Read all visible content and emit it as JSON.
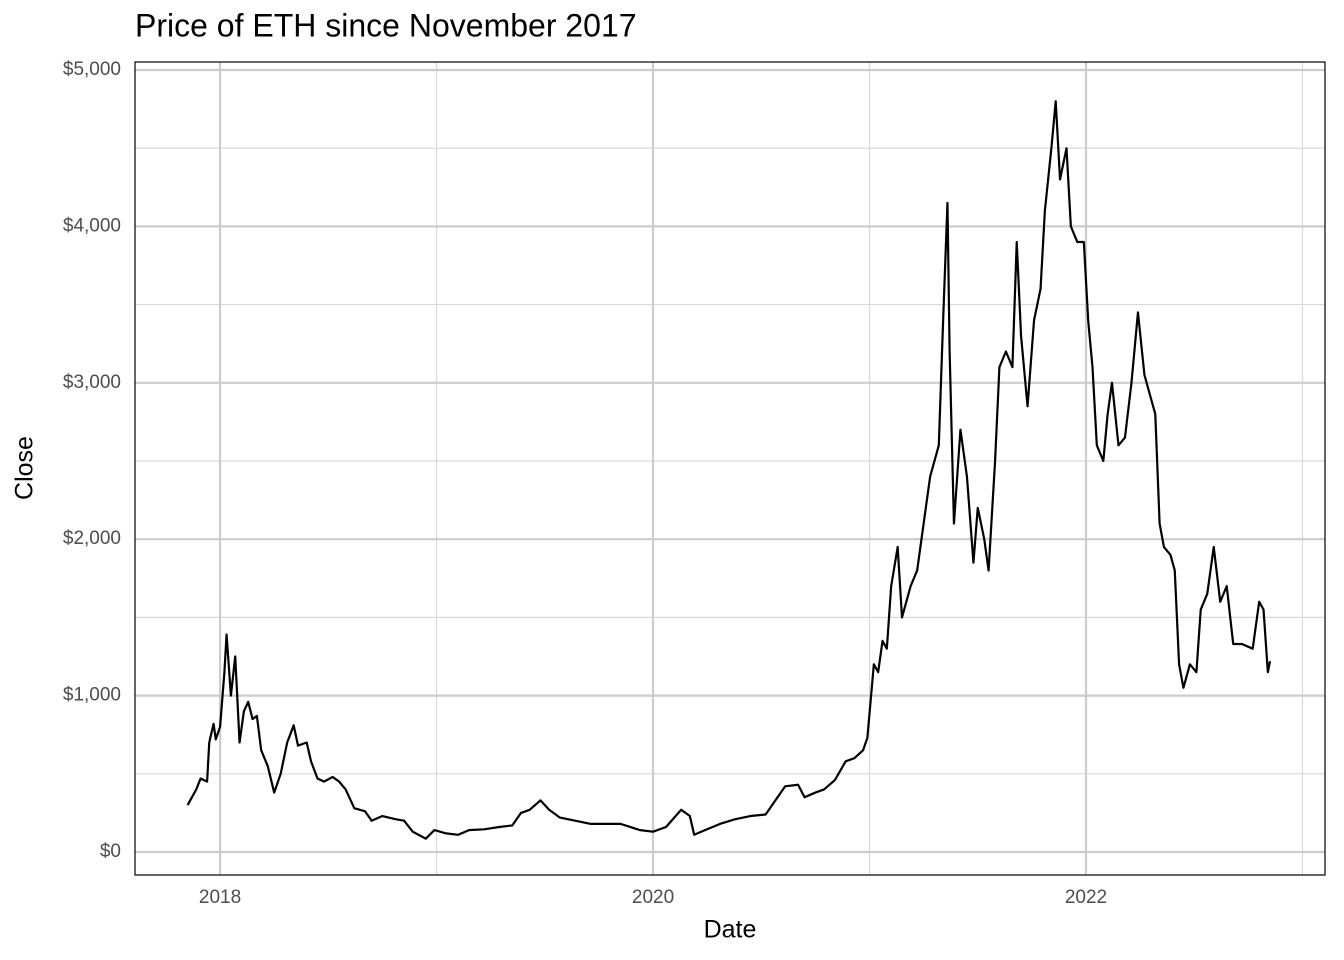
{
  "chart_data": {
    "type": "line",
    "title": "Price of ETH since November 2017",
    "x_label": "Date",
    "y_label": "Close",
    "x": [
      2017.85,
      2017.89,
      2017.91,
      2017.94,
      2017.95,
      2017.97,
      2017.98,
      2018.0,
      2018.02,
      2018.03,
      2018.05,
      2018.07,
      2018.09,
      2018.11,
      2018.13,
      2018.15,
      2018.17,
      2018.19,
      2018.22,
      2018.25,
      2018.28,
      2018.31,
      2018.34,
      2018.36,
      2018.4,
      2018.42,
      2018.45,
      2018.48,
      2018.52,
      2018.55,
      2018.58,
      2018.62,
      2018.67,
      2018.7,
      2018.75,
      2018.81,
      2018.85,
      2018.89,
      2018.95,
      2018.99,
      2019.04,
      2019.1,
      2019.15,
      2019.22,
      2019.29,
      2019.35,
      2019.39,
      2019.43,
      2019.48,
      2019.52,
      2019.57,
      2019.64,
      2019.71,
      2019.78,
      2019.85,
      2019.94,
      2020.0,
      2020.06,
      2020.13,
      2020.17,
      2020.19,
      2020.24,
      2020.31,
      2020.38,
      2020.45,
      2020.52,
      2020.56,
      2020.61,
      2020.67,
      2020.7,
      2020.75,
      2020.79,
      2020.84,
      2020.89,
      2020.93,
      2020.97,
      2020.99,
      2021.02,
      2021.04,
      2021.06,
      2021.08,
      2021.1,
      2021.13,
      2021.15,
      2021.19,
      2021.22,
      2021.25,
      2021.28,
      2021.32,
      2021.34,
      2021.36,
      2021.37,
      2021.39,
      2021.42,
      2021.45,
      2021.48,
      2021.5,
      2021.53,
      2021.55,
      2021.58,
      2021.6,
      2021.63,
      2021.66,
      2021.68,
      2021.7,
      2021.73,
      2021.76,
      2021.79,
      2021.81,
      2021.84,
      2021.86,
      2021.88,
      2021.91,
      2021.93,
      2021.96,
      2021.99,
      2022.01,
      2022.03,
      2022.05,
      2022.08,
      2022.1,
      2022.12,
      2022.15,
      2022.18,
      2022.21,
      2022.24,
      2022.27,
      2022.29,
      2022.32,
      2022.34,
      2022.36,
      2022.39,
      2022.41,
      2022.43,
      2022.45,
      2022.48,
      2022.51,
      2022.53,
      2022.56,
      2022.59,
      2022.62,
      2022.65,
      2022.68,
      2022.72,
      2022.77,
      2022.8,
      2022.82,
      2022.84,
      2022.85
    ],
    "series": [
      {
        "name": "Close",
        "color": "#000000",
        "values": [
          300,
          400,
          470,
          450,
          700,
          820,
          720,
          800,
          1150,
          1390,
          1000,
          1250,
          700,
          900,
          960,
          850,
          870,
          650,
          550,
          380,
          500,
          700,
          810,
          680,
          700,
          580,
          470,
          450,
          480,
          450,
          400,
          280,
          260,
          200,
          230,
          210,
          200,
          130,
          85,
          140,
          120,
          110,
          140,
          145,
          160,
          170,
          250,
          270,
          330,
          270,
          220,
          200,
          180,
          180,
          180,
          140,
          130,
          160,
          270,
          230,
          110,
          140,
          180,
          210,
          230,
          240,
          320,
          420,
          430,
          350,
          380,
          400,
          460,
          580,
          600,
          650,
          730,
          1200,
          1150,
          1350,
          1300,
          1700,
          1950,
          1500,
          1700,
          1800,
          2100,
          2400,
          2600,
          3400,
          4150,
          3200,
          2100,
          2700,
          2400,
          1850,
          2200,
          2000,
          1800,
          2500,
          3100,
          3200,
          3100,
          3900,
          3300,
          2850,
          3400,
          3600,
          4100,
          4500,
          4800,
          4300,
          4500,
          4000,
          3900,
          3900,
          3400,
          3100,
          2600,
          2500,
          2800,
          3000,
          2600,
          2650,
          3000,
          3450,
          3050,
          2950,
          2800,
          2100,
          1950,
          1900,
          1800,
          1200,
          1050,
          1200,
          1150,
          1550,
          1650,
          1950,
          1600,
          1700,
          1330,
          1330,
          1300,
          1600,
          1550,
          1150,
          1220
        ]
      }
    ],
    "xlim": [
      2017.607,
      2023.104
    ],
    "xticks": [
      2018,
      2020,
      2022
    ],
    "minor_xticks": [
      2019,
      2021,
      2023
    ],
    "ylim": [
      -147,
      5051
    ],
    "yticks": [
      {
        "value": 0,
        "label": "$0"
      },
      {
        "value": 1000,
        "label": "$1,000"
      },
      {
        "value": 2000,
        "label": "$2,000"
      },
      {
        "value": 3000,
        "label": "$3,000"
      },
      {
        "value": 4000,
        "label": "$4,000"
      },
      {
        "value": 5000,
        "label": "$5,000"
      }
    ],
    "minor_yticks": [
      500,
      1500,
      2500,
      3500,
      4500
    ],
    "grid": true
  }
}
